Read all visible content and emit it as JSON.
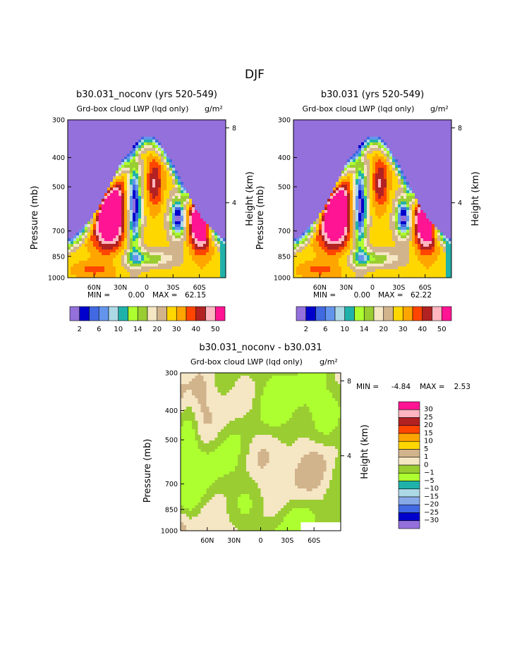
{
  "page_title": "DJF",
  "colors": {
    "frame": "#000000",
    "full_palette": [
      "#9370DB",
      "#0000CD",
      "#4169E1",
      "#6495ED",
      "#ADD8E6",
      "#20B2AA",
      "#ADFF2F",
      "#9ACD32",
      "#F5E6C4",
      "#D2B48C",
      "#FFD700",
      "#FFA500",
      "#FF4500",
      "#B22222",
      "#FFB6C1",
      "#FF1493"
    ],
    "diff_palette": [
      "#9370DB",
      "#0000CD",
      "#4169E1",
      "#87A9E8",
      "#ADD8E6",
      "#20B2AA",
      "#ADFF2F",
      "#9ACD32",
      "#F5E6C4",
      "#D2B48C",
      "#FFD700",
      "#FFA500",
      "#FF4500",
      "#B22222",
      "#FFB6C1",
      "#FF1493"
    ]
  },
  "chart_data": [
    {
      "id": "left",
      "type": "heatmap",
      "title": "b30.031_noconv (yrs 520-549)",
      "subtitle": "Grd-box cloud LWP (lqd only)",
      "units": "g/m²",
      "ylabel": "Pressure (mb)",
      "y2label": "Height (km)",
      "ylim": [
        1000,
        300
      ],
      "yticks": [
        "300",
        "400",
        "500",
        "700",
        "850",
        "1000"
      ],
      "y2ticks": [
        "8",
        "4"
      ],
      "xticks": [
        "60N",
        "30N",
        "0",
        "30S",
        "60S"
      ],
      "min_label": "MIN =",
      "min_value": "0.00",
      "max_label": "MAX =",
      "max_value": "62.15",
      "colorbar_labels": [
        "2",
        "6",
        "10",
        "14",
        "20",
        "30",
        "40",
        "50"
      ],
      "field": "full"
    },
    {
      "id": "right",
      "type": "heatmap",
      "title": "b30.031 (yrs 520-549)",
      "subtitle": "Grd-box cloud LWP (lqd only)",
      "units": "g/m²",
      "ylabel": "Pressure (mb)",
      "y2label": "Height (km)",
      "ylim": [
        1000,
        300
      ],
      "yticks": [
        "300",
        "400",
        "500",
        "700",
        "850",
        "1000"
      ],
      "y2ticks": [
        "8",
        "4"
      ],
      "xticks": [
        "60N",
        "30N",
        "0",
        "30S",
        "60S"
      ],
      "min_label": "MIN =",
      "min_value": "0.00",
      "max_label": "MAX =",
      "max_value": "62.22",
      "colorbar_labels": [
        "2",
        "6",
        "10",
        "14",
        "20",
        "30",
        "40",
        "50"
      ],
      "field": "full"
    },
    {
      "id": "diff",
      "type": "heatmap",
      "title": "b30.031_noconv - b30.031",
      "subtitle": "Grd-box cloud LWP (lqd only)",
      "units": "g/m²",
      "ylabel": "Pressure (mb)",
      "y2label": "Height (km)",
      "ylim": [
        1000,
        300
      ],
      "yticks": [
        "300",
        "400",
        "500",
        "700",
        "850",
        "1000"
      ],
      "y2ticks": [
        "8",
        "4"
      ],
      "xticks": [
        "60N",
        "30N",
        "0",
        "30S",
        "60S"
      ],
      "min_label": "MIN =",
      "min_value": "-4.84",
      "max_label": "MAX =",
      "max_value": "2.53",
      "colorbar_labels": [
        "30",
        "25",
        "20",
        "15",
        "10",
        "5",
        "1",
        "0",
        "-1",
        "-5",
        "-10",
        "-15",
        "-20",
        "-25",
        "-30"
      ],
      "field": "diff"
    }
  ]
}
